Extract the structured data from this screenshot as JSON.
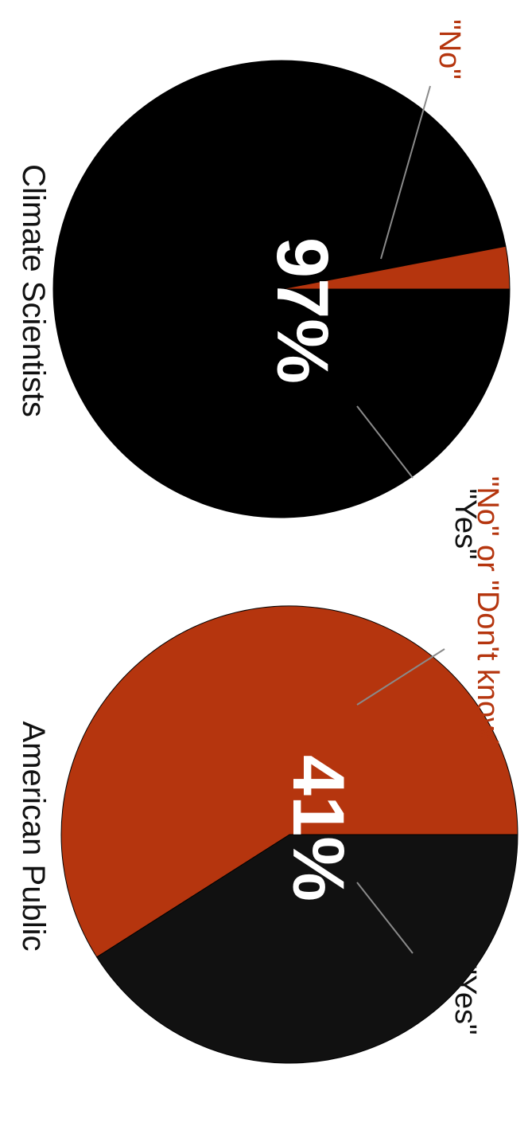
{
  "chart_data": [
    {
      "type": "pie",
      "title": "Climate Scientists",
      "center_label": "97%",
      "slices": [
        {
          "label": "\"Yes\"",
          "value": 97
        },
        {
          "label": "\"No\"",
          "value": 3
        }
      ]
    },
    {
      "type": "pie",
      "title": "American Public",
      "center_label": "41%",
      "slices": [
        {
          "label": "\"Yes\"",
          "value": 41
        },
        {
          "label": "\"No\" or \"Don't know\"",
          "value": 59
        }
      ]
    }
  ],
  "colors": {
    "yes": "#000000",
    "no": "#b5350e",
    "yes_alt": "#111111"
  }
}
